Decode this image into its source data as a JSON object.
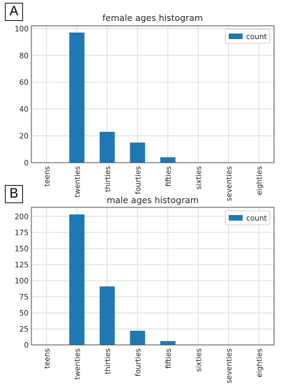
{
  "panels": [
    {
      "label": "A"
    },
    {
      "label": "B"
    }
  ],
  "chart_data": [
    {
      "type": "bar",
      "title": "female ages histogram",
      "xlabel": "",
      "ylabel": "",
      "categories": [
        "teens",
        "twenties",
        "thirties",
        "fourties",
        "fifties",
        "sixties",
        "seventies",
        "eighties"
      ],
      "series": [
        {
          "name": "count",
          "values": [
            0,
            97,
            23,
            15,
            4,
            0,
            0,
            0
          ]
        }
      ],
      "ylim": [
        0,
        102
      ],
      "yticks": [
        0,
        20,
        40,
        60,
        80,
        100
      ],
      "grid": true,
      "legend": "top-right",
      "colors": {
        "bar": "#1f77b4",
        "grid": "#d9d9d9",
        "frame": "#444444"
      }
    },
    {
      "type": "bar",
      "title": "male ages histogram",
      "xlabel": "",
      "ylabel": "",
      "categories": [
        "teens",
        "twenties",
        "thirties",
        "fourties",
        "fifties",
        "sixties",
        "seventies",
        "eighties"
      ],
      "series": [
        {
          "name": "count",
          "values": [
            0,
            203,
            91,
            22,
            6,
            0,
            0,
            0
          ]
        }
      ],
      "ylim": [
        0,
        214
      ],
      "yticks": [
        0,
        25,
        50,
        75,
        100,
        125,
        150,
        175,
        200
      ],
      "grid": true,
      "legend": "top-right",
      "colors": {
        "bar": "#1f77b4",
        "grid": "#d9d9d9",
        "frame": "#444444"
      }
    }
  ]
}
